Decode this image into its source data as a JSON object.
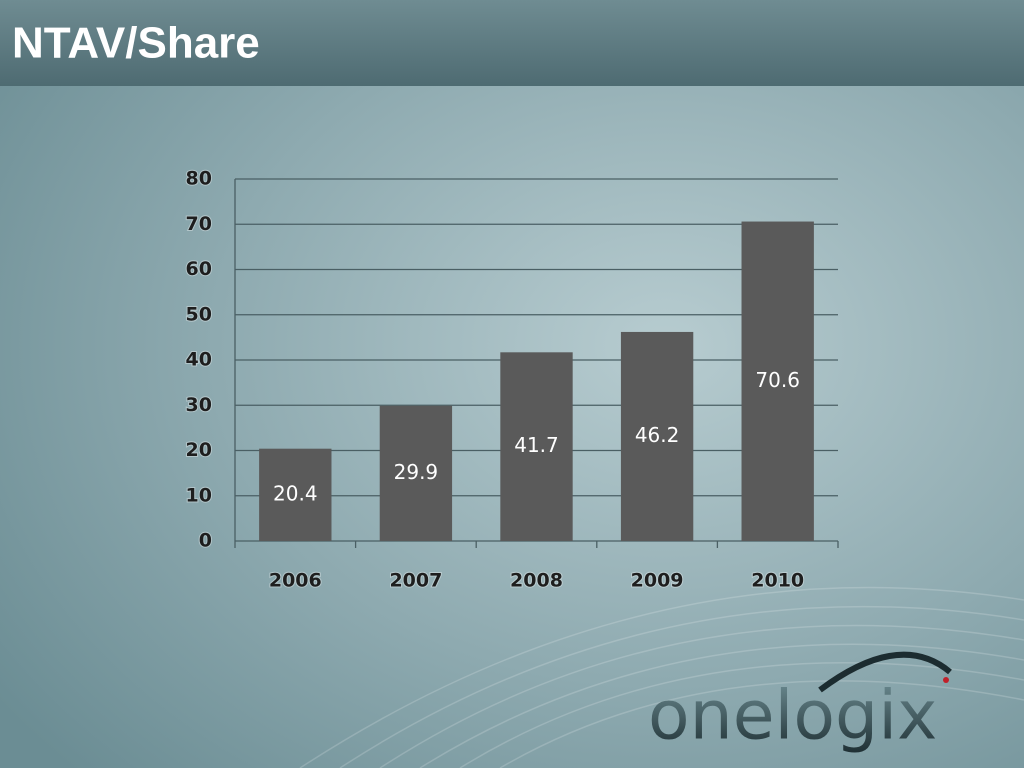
{
  "chart_data": {
    "type": "bar",
    "title": "NTAV/Share",
    "categories": [
      "2006",
      "2007",
      "2008",
      "2009",
      "2010"
    ],
    "values": [
      20.4,
      29.9,
      41.7,
      46.2,
      70.6
    ],
    "color": "#5a5a5a",
    "ylim": [
      0,
      80
    ],
    "yticks": [
      0,
      10,
      20,
      30,
      40,
      50,
      60,
      70,
      80
    ],
    "grid": true
  },
  "logo": "onelogix"
}
